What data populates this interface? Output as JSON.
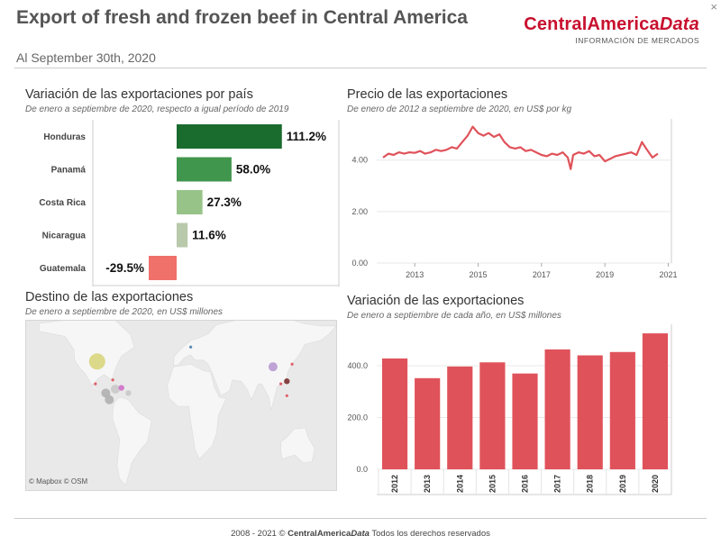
{
  "header": {
    "title": "Export of fresh and frozen beef in Central America",
    "subtitle": "Al September 30th, 2020",
    "brand_main": "CentralAmerica",
    "brand_italic": "Data",
    "brand_tag": "INFORMACIÓN DE MERCADOS",
    "close_glyph": "×"
  },
  "panel_variation_country": {
    "title": "Variación de las exportaciones por país",
    "subtitle": "De enero a septiembre de 2020, respecto a igual período de 2019"
  },
  "panel_price": {
    "title": "Precio de las exportaciones",
    "subtitle": "De enero de 2012 a septiembre de 2020, en US$ por kg"
  },
  "panel_destination": {
    "title": "Destino de las exportaciones",
    "subtitle": "De enero a septiembre de 2020, en US$ millones",
    "attribution": "© Mapbox  © OSM"
  },
  "panel_variation_year": {
    "title": "Variación de las exportaciones",
    "subtitle": "De enero a septiembre de cada año, en US$ millones"
  },
  "footer": {
    "pre": "2008 - 2021 © ",
    "brand_main": "CentralAmerica",
    "brand_italic": "Data",
    "post": " Todos los derechos reservados"
  },
  "colors": {
    "red": "#e0525a",
    "salmon": "#f0706a",
    "green_dark": "#1a6b2e",
    "green_mid": "#41964e",
    "green_light": "#97c389",
    "green_pale": "#b9c9ab"
  },
  "chart_data": [
    {
      "type": "bar",
      "orientation": "horizontal",
      "title": "Variación de las exportaciones por país",
      "categories": [
        "Honduras",
        "Panamá",
        "Costa Rica",
        "Nicaragua",
        "Guatemala"
      ],
      "values": [
        111.2,
        58.0,
        27.3,
        11.6,
        -29.5
      ],
      "labels": [
        "111.2%",
        "58.0%",
        "27.3%",
        "11.6%",
        "-29.5%"
      ],
      "colors": [
        "#1a6b2e",
        "#41964e",
        "#97c389",
        "#b9c9ab",
        "#f0706a"
      ]
    },
    {
      "type": "line",
      "title": "Precio de las exportaciones",
      "x_ticks": [
        "2013",
        "2015",
        "2017",
        "2019",
        "2021"
      ],
      "y_ticks": [
        "0.00",
        "2.00",
        "4.00"
      ],
      "ylim": [
        0,
        5.6
      ],
      "xlim": [
        2011.8,
        2021.1
      ],
      "color": "#e0525a",
      "x": [
        2012.0,
        2012.17,
        2012.33,
        2012.5,
        2012.67,
        2012.83,
        2013.0,
        2013.17,
        2013.33,
        2013.5,
        2013.67,
        2013.83,
        2014.0,
        2014.17,
        2014.33,
        2014.5,
        2014.67,
        2014.83,
        2015.0,
        2015.17,
        2015.33,
        2015.5,
        2015.67,
        2015.83,
        2016.0,
        2016.17,
        2016.33,
        2016.5,
        2016.67,
        2016.83,
        2017.0,
        2017.17,
        2017.33,
        2017.5,
        2017.67,
        2017.83,
        2017.92,
        2018.0,
        2018.17,
        2018.33,
        2018.5,
        2018.67,
        2018.83,
        2019.0,
        2019.17,
        2019.33,
        2019.5,
        2019.67,
        2019.83,
        2020.0,
        2020.17,
        2020.33,
        2020.5,
        2020.67
      ],
      "y": [
        4.1,
        4.25,
        4.2,
        4.3,
        4.25,
        4.3,
        4.28,
        4.35,
        4.25,
        4.3,
        4.4,
        4.35,
        4.4,
        4.5,
        4.45,
        4.7,
        4.95,
        5.3,
        5.05,
        4.95,
        5.05,
        4.9,
        5.0,
        4.7,
        4.5,
        4.45,
        4.5,
        4.35,
        4.4,
        4.3,
        4.2,
        4.15,
        4.25,
        4.2,
        4.3,
        4.1,
        3.65,
        4.2,
        4.3,
        4.25,
        4.35,
        4.15,
        4.2,
        3.95,
        4.05,
        4.15,
        4.2,
        4.25,
        4.3,
        4.2,
        4.7,
        4.4,
        4.1,
        4.25
      ]
    },
    {
      "type": "bar",
      "title": "Variación de las exportaciones",
      "categories": [
        "2012",
        "2013",
        "2014",
        "2015",
        "2016",
        "2017",
        "2018",
        "2019",
        "2020"
      ],
      "values": [
        428,
        352,
        397,
        413,
        370,
        463,
        440,
        453,
        525
      ],
      "y_ticks": [
        "0.0",
        "200.0",
        "400.0"
      ],
      "ylim": [
        0,
        560
      ],
      "color": "#e0525a"
    }
  ],
  "map_markers": [
    {
      "name": "usa",
      "lon": -98,
      "lat": 39,
      "value": "large",
      "color": "#d9d680"
    },
    {
      "name": "china",
      "lon": 105,
      "lat": 35,
      "value": "medium",
      "color": "#b99ad2"
    },
    {
      "name": "taiwan",
      "lon": 121,
      "lat": 24,
      "value": "small",
      "color": "#7a3030"
    },
    {
      "name": "hongkong",
      "lon": 114,
      "lat": 22,
      "value": "tiny",
      "color": "#e0525a"
    },
    {
      "name": "korea",
      "lon": 127,
      "lat": 37,
      "value": "tiny",
      "color": "#e0525a"
    },
    {
      "name": "philippines",
      "lon": 121,
      "lat": 13,
      "value": "tiny",
      "color": "#e0525a"
    },
    {
      "name": "central-america-1",
      "lon": -88,
      "lat": 15,
      "value": "medium",
      "color": "#b0b0b0"
    },
    {
      "name": "central-america-2",
      "lon": -84,
      "lat": 10,
      "value": "medium",
      "color": "#b0b0b0"
    },
    {
      "name": "caribbean-1",
      "lon": -77,
      "lat": 18,
      "value": "medium",
      "color": "#c9c9c9"
    },
    {
      "name": "caribbean-2",
      "lon": -70,
      "lat": 19,
      "value": "small",
      "color": "#d070c8"
    },
    {
      "name": "caribbean-3",
      "lon": -62,
      "lat": 15,
      "value": "small",
      "color": "#c9c9c9"
    },
    {
      "name": "mexico",
      "lon": -100,
      "lat": 22,
      "value": "tiny",
      "color": "#e0525a"
    },
    {
      "name": "europe",
      "lon": 10,
      "lat": 50,
      "value": "tiny",
      "color": "#4a7fb0"
    },
    {
      "name": "gulf",
      "lon": -80,
      "lat": 25,
      "value": "tiny",
      "color": "#e0525a"
    }
  ]
}
